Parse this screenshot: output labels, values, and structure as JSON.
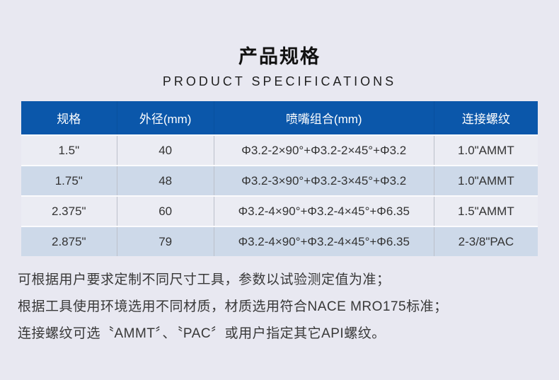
{
  "header": {
    "title": "产品规格",
    "subtitle": "PRODUCT  SPECIFICATIONS"
  },
  "table": {
    "columns": [
      "规格",
      "外径(mm)",
      "喷嘴组合(mm)",
      "连接螺纹"
    ],
    "rows": [
      [
        "1.5\"",
        "40",
        "Φ3.2-2×90°+Φ3.2-2×45°+Φ3.2",
        "1.0\"AMMT"
      ],
      [
        "1.75\"",
        "48",
        "Φ3.2-3×90°+Φ3.2-3×45°+Φ3.2",
        "1.0\"AMMT"
      ],
      [
        "2.375\"",
        "60",
        "Φ3.2-4×90°+Φ3.2-4×45°+Φ6.35",
        "1.5\"AMMT"
      ],
      [
        "2.875\"",
        "79",
        "Φ3.2-4×90°+Φ3.2-4×45°+Φ6.35",
        "2-3/8\"PAC"
      ]
    ]
  },
  "notes": [
    "可根据用户要求定制不同尺寸工具，参数以试验测定值为准；",
    "根据工具使用环境选用不同材质，材质选用符合NACE MRO175标准；",
    "连接螺纹可选〝AMMT〞、〝PAC〞或用户指定其它API螺纹。"
  ],
  "colors": {
    "page_bg": "#e8e8f1",
    "header_bg": "#0b57aa",
    "header_text": "#ffffff",
    "row_light_bg": "#ebecf3",
    "row_blue_bg": "#cdd9e9",
    "cell_text": "#333333",
    "note_text": "#383838"
  }
}
